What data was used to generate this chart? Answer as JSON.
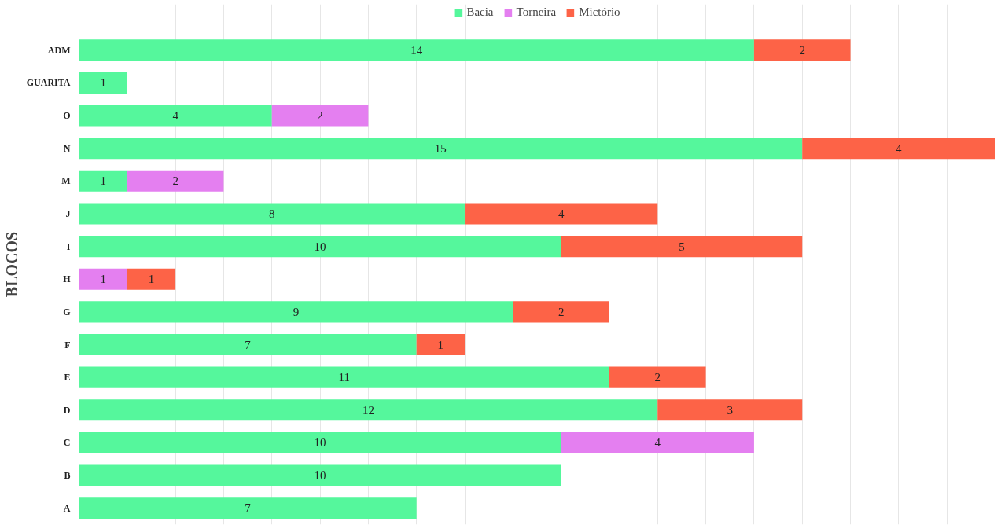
{
  "chart_data": {
    "type": "bar",
    "orientation": "horizontal",
    "stacked": true,
    "ylabel": "BLOCOS",
    "categories": [
      "ADM",
      "GUARITA",
      "O",
      "N",
      "M",
      "J",
      "I",
      "H",
      "G",
      "F",
      "E",
      "D",
      "C",
      "B",
      "A"
    ],
    "series": [
      {
        "name": "Bacia",
        "color": "#55f79c",
        "values": [
          14,
          1,
          4,
          15,
          1,
          8,
          10,
          null,
          9,
          7,
          11,
          12,
          10,
          10,
          7
        ]
      },
      {
        "name": "Torneira",
        "color": "#e47ff0",
        "values": [
          null,
          null,
          2,
          null,
          2,
          null,
          null,
          1,
          null,
          null,
          null,
          null,
          4,
          null,
          null
        ]
      },
      {
        "name": "Mictório",
        "color": "#fd6347",
        "values": [
          2,
          null,
          null,
          4,
          null,
          4,
          5,
          1,
          2,
          1,
          2,
          3,
          null,
          null,
          null
        ]
      }
    ],
    "xlim": [
      0,
      19
    ],
    "grid": "x",
    "legend": "top",
    "tick_labels": "y",
    "data_labels": true
  }
}
